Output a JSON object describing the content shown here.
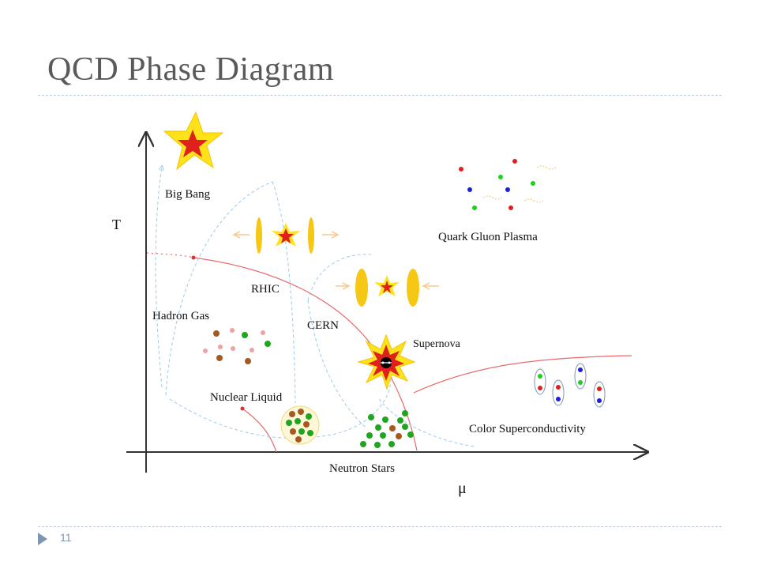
{
  "slide": {
    "title": "QCD Phase Diagram",
    "slide_number": "11"
  },
  "diagram": {
    "axes": {
      "y_label": "T",
      "x_label": "μ"
    },
    "labels": {
      "big_bang": "Big Bang",
      "rhic": "RHIC",
      "hadron_gas": "Hadron Gas",
      "cern": "CERN",
      "supernova": "Supernova",
      "quark_gluon_plasma": "Quark Gluon Plasma",
      "nuclear_liquid": "Nuclear Liquid",
      "neutron_stars": "Neutron Stars",
      "color_superconductivity": "Color Superconductivity"
    },
    "colors": {
      "phase_boundary": "#e86a6a",
      "trajectory": "#9ccbea",
      "axis": "#333333",
      "accent_blue": "#7d97b1"
    }
  }
}
